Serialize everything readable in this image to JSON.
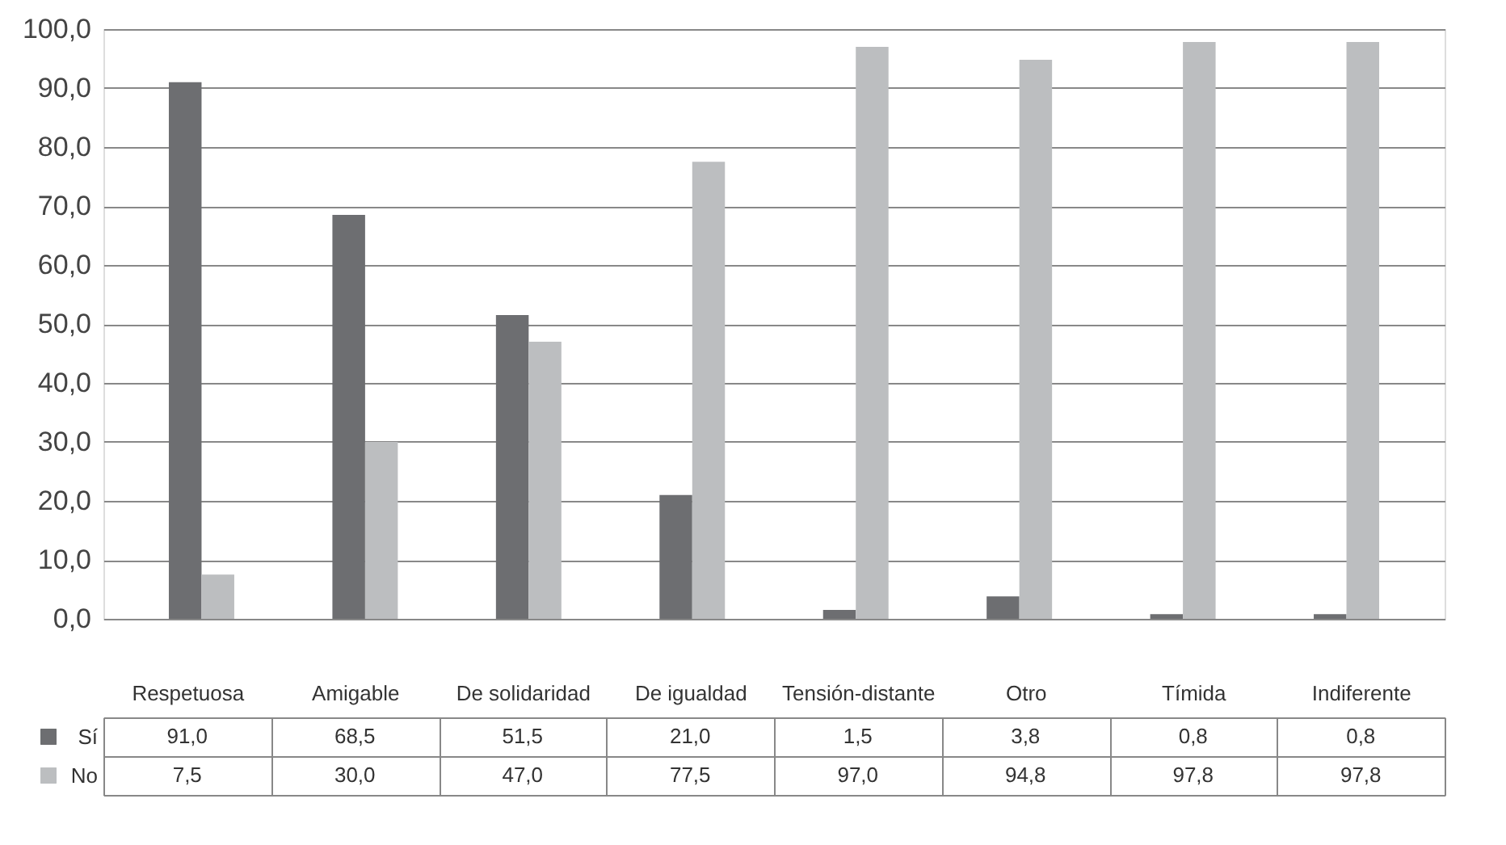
{
  "chart_data": {
    "type": "bar",
    "categories": [
      "Respetuosa",
      "Amigable",
      "De solidaridad",
      "De igualdad",
      "Tensión-distante",
      "Otro",
      "Tímida",
      "Indiferente"
    ],
    "series": [
      {
        "name": "Sí",
        "color": "#6d6e71",
        "values": [
          91.0,
          68.5,
          51.5,
          21.0,
          1.5,
          3.8,
          0.8,
          0.8
        ],
        "value_labels": [
          "91,0",
          "68,5",
          "51,5",
          "21,0",
          "1,5",
          "3,8",
          "0,8",
          "0,8"
        ]
      },
      {
        "name": "No",
        "color": "#bcbec0",
        "values": [
          7.5,
          30.0,
          47.0,
          77.5,
          97.0,
          94.8,
          97.8,
          97.8
        ],
        "value_labels": [
          "7,5",
          "30,0",
          "47,0",
          "77,5",
          "97,0",
          "94,8",
          "97,8",
          "97,8"
        ]
      }
    ],
    "ylim": [
      0,
      100
    ],
    "yticks": [
      {
        "value": 0,
        "label": "0,0"
      },
      {
        "value": 10,
        "label": "10,0"
      },
      {
        "value": 20,
        "label": "20,0"
      },
      {
        "value": 30,
        "label": "30,0"
      },
      {
        "value": 40,
        "label": "40,0"
      },
      {
        "value": 50,
        "label": "50,0"
      },
      {
        "value": 60,
        "label": "60,0"
      },
      {
        "value": 70,
        "label": "70,0"
      },
      {
        "value": 80,
        "label": "80,0"
      },
      {
        "value": 90,
        "label": "90,0"
      },
      {
        "value": 100,
        "label": "100,0"
      }
    ],
    "grid": "y",
    "legend": "bottom"
  }
}
